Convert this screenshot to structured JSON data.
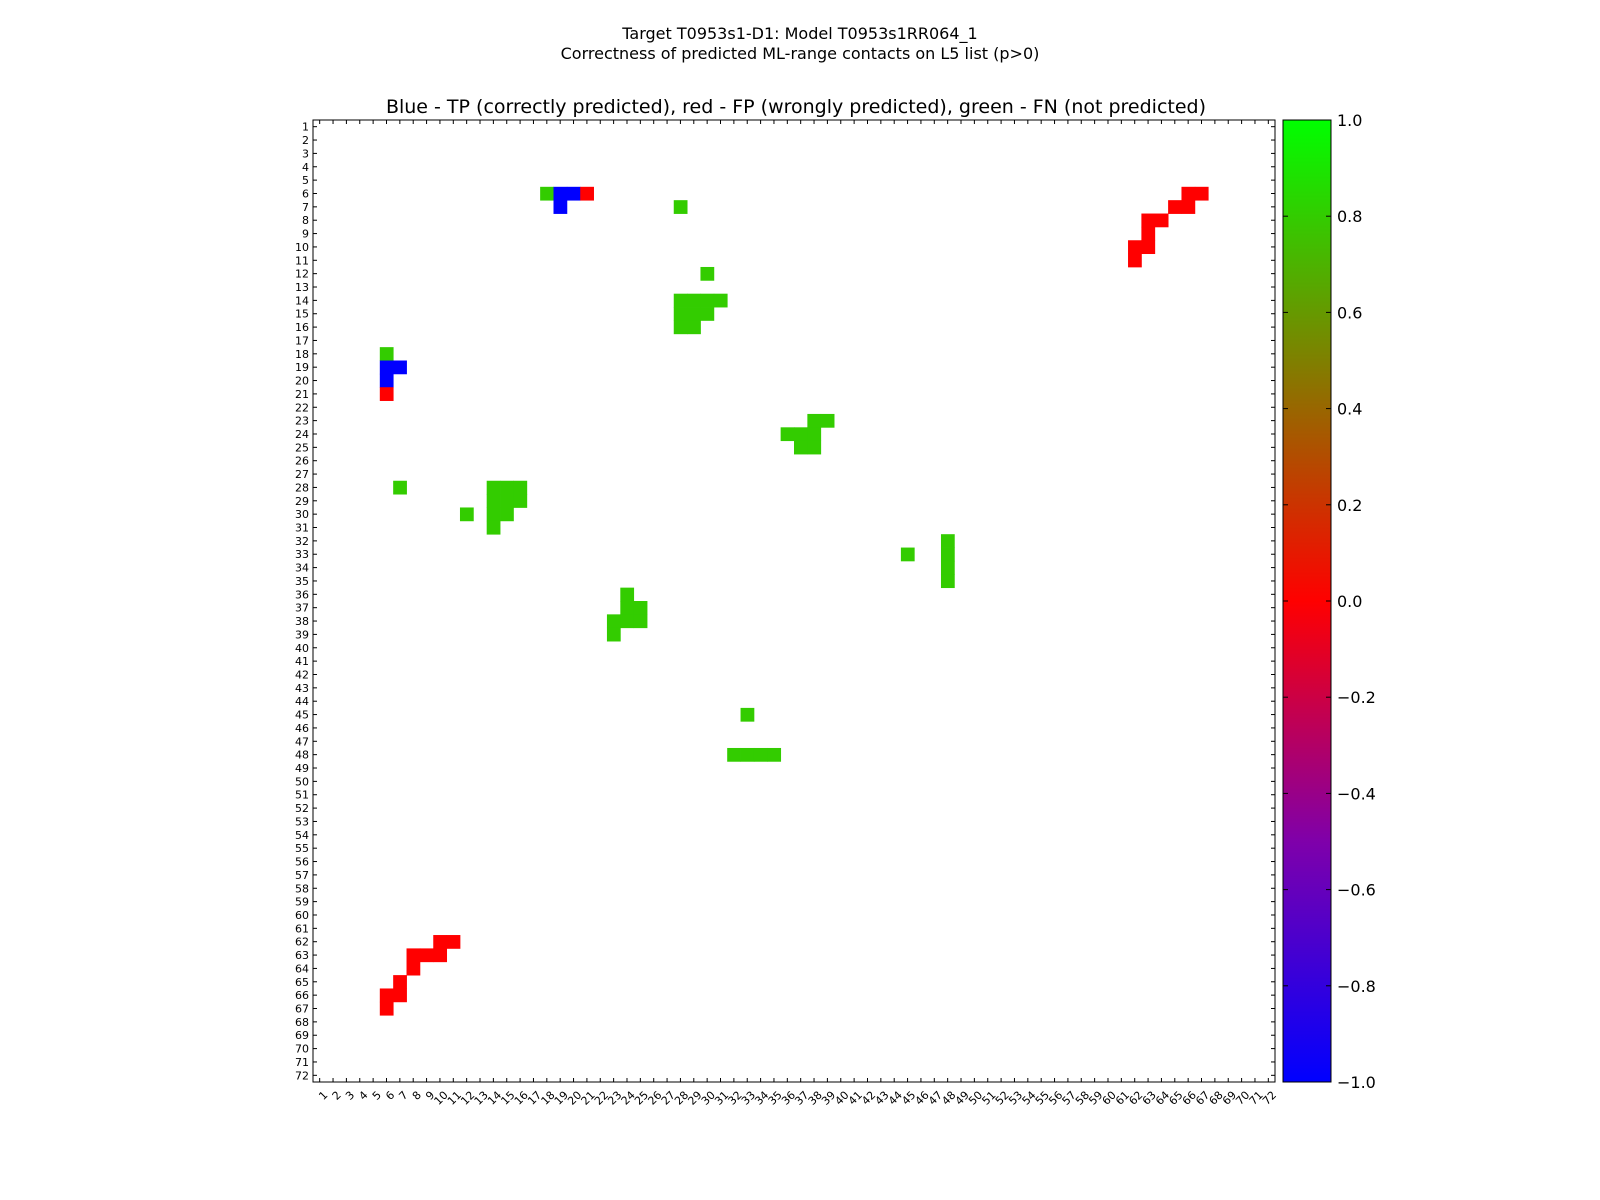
{
  "chart_data": {
    "type": "heatmap",
    "title_lines": [
      "Target T0953s1-D1: Model T0953s1RR064_1",
      "Correctness of predicted ML-range contacts on L5 list (p>0)"
    ],
    "subtitle": "Blue - TP (correctly predicted), red - FP (wrongly predicted), green - FN (not predicted)",
    "xlabel": "",
    "ylabel": "",
    "x_range": [
      1,
      72
    ],
    "y_range": [
      1,
      72
    ],
    "y_inverted": true,
    "grid": false,
    "colorbar": {
      "min": -1.0,
      "max": 1.0,
      "ticks": [
        "1.0",
        "0.8",
        "0.6",
        "0.4",
        "0.2",
        "0.0",
        "−0.2",
        "−0.4",
        "−0.6",
        "−0.8",
        "−1.0"
      ],
      "tick_values": [
        1.0,
        0.8,
        0.6,
        0.4,
        0.2,
        0.0,
        -0.2,
        -0.4,
        -0.6,
        -0.8,
        -1.0
      ],
      "colors": [
        {
          "value": -1.0,
          "color": "#0000ff"
        },
        {
          "value": 0.0,
          "color": "#ff0000"
        },
        {
          "value": 1.0,
          "color": "#00ff00"
        }
      ]
    },
    "legend": {
      "TP": {
        "value": -1,
        "color": "#0000ff"
      },
      "FP": {
        "value": 0,
        "color": "#ff0000"
      },
      "FN": {
        "value": 0.8,
        "color": "#33cc00"
      }
    },
    "cells_columns": [
      "x",
      "y",
      "value"
    ],
    "cells": [
      [
        18,
        6,
        0.8
      ],
      [
        19,
        6,
        -1
      ],
      [
        20,
        6,
        -1
      ],
      [
        21,
        6,
        0
      ],
      [
        19,
        7,
        -1
      ],
      [
        28,
        7,
        0.8
      ],
      [
        66,
        6,
        0
      ],
      [
        67,
        6,
        0
      ],
      [
        65,
        7,
        0
      ],
      [
        66,
        7,
        0
      ],
      [
        63,
        8,
        0
      ],
      [
        64,
        8,
        0
      ],
      [
        63,
        9,
        0
      ],
      [
        62,
        10,
        0
      ],
      [
        63,
        10,
        0
      ],
      [
        62,
        11,
        0
      ],
      [
        30,
        12,
        0.8
      ],
      [
        28,
        14,
        0.8
      ],
      [
        29,
        14,
        0.8
      ],
      [
        30,
        14,
        0.8
      ],
      [
        31,
        14,
        0.8
      ],
      [
        28,
        15,
        0.8
      ],
      [
        29,
        15,
        0.8
      ],
      [
        30,
        15,
        0.8
      ],
      [
        28,
        16,
        0.8
      ],
      [
        29,
        16,
        0.8
      ],
      [
        6,
        18,
        0.8
      ],
      [
        6,
        19,
        -1
      ],
      [
        7,
        19,
        -1
      ],
      [
        6,
        20,
        -1
      ],
      [
        6,
        21,
        0
      ],
      [
        38,
        23,
        0.8
      ],
      [
        39,
        23,
        0.8
      ],
      [
        36,
        24,
        0.8
      ],
      [
        37,
        24,
        0.8
      ],
      [
        38,
        24,
        0.8
      ],
      [
        37,
        25,
        0.8
      ],
      [
        38,
        25,
        0.8
      ],
      [
        7,
        28,
        0.8
      ],
      [
        14,
        28,
        0.8
      ],
      [
        15,
        28,
        0.8
      ],
      [
        16,
        28,
        0.8
      ],
      [
        14,
        29,
        0.8
      ],
      [
        15,
        29,
        0.8
      ],
      [
        16,
        29,
        0.8
      ],
      [
        12,
        30,
        0.8
      ],
      [
        14,
        30,
        0.8
      ],
      [
        15,
        30,
        0.8
      ],
      [
        14,
        31,
        0.8
      ],
      [
        48,
        32,
        0.8
      ],
      [
        45,
        33,
        0.8
      ],
      [
        48,
        33,
        0.8
      ],
      [
        48,
        34,
        0.8
      ],
      [
        48,
        35,
        0.8
      ],
      [
        24,
        36,
        0.8
      ],
      [
        24,
        37,
        0.8
      ],
      [
        25,
        37,
        0.8
      ],
      [
        23,
        38,
        0.8
      ],
      [
        24,
        38,
        0.8
      ],
      [
        25,
        38,
        0.8
      ],
      [
        23,
        39,
        0.8
      ],
      [
        33,
        45,
        0.8
      ],
      [
        32,
        48,
        0.8
      ],
      [
        33,
        48,
        0.8
      ],
      [
        34,
        48,
        0.8
      ],
      [
        35,
        48,
        0.8
      ],
      [
        10,
        62,
        0
      ],
      [
        11,
        62,
        0
      ],
      [
        8,
        63,
        0
      ],
      [
        9,
        63,
        0
      ],
      [
        10,
        63,
        0
      ],
      [
        8,
        64,
        0
      ],
      [
        7,
        65,
        0
      ],
      [
        6,
        66,
        0
      ],
      [
        7,
        66,
        0
      ],
      [
        6,
        67,
        0
      ]
    ]
  }
}
